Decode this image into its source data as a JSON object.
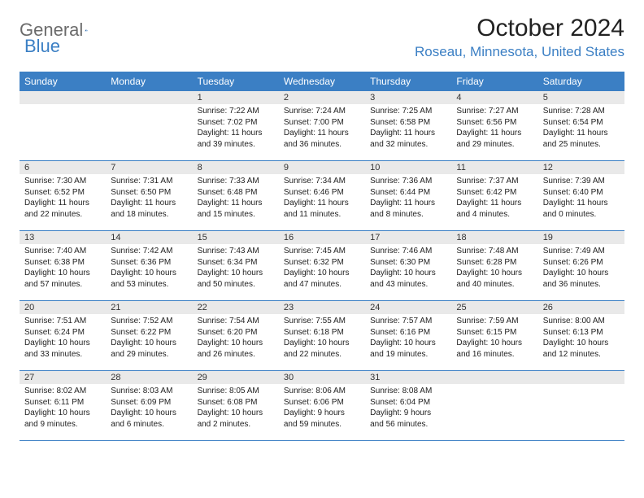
{
  "logo": {
    "word1": "General",
    "word2": "Blue"
  },
  "header": {
    "month_title": "October 2024",
    "location": "Roseau, Minnesota, United States"
  },
  "colors": {
    "header_bg": "#3b7fc4",
    "header_text": "#ffffff",
    "daynum_bg": "#e9e9e9",
    "body_bg": "#ffffff",
    "rule": "#3b7fc4",
    "logo_gray": "#6b6b6b",
    "logo_blue": "#3b7fc4"
  },
  "weekdays": [
    "Sunday",
    "Monday",
    "Tuesday",
    "Wednesday",
    "Thursday",
    "Friday",
    "Saturday"
  ],
  "weeks": [
    [
      {
        "day": "",
        "sunrise": "",
        "sunset": "",
        "daylight": ""
      },
      {
        "day": "",
        "sunrise": "",
        "sunset": "",
        "daylight": ""
      },
      {
        "day": "1",
        "sunrise": "Sunrise: 7:22 AM",
        "sunset": "Sunset: 7:02 PM",
        "daylight": "Daylight: 11 hours and 39 minutes."
      },
      {
        "day": "2",
        "sunrise": "Sunrise: 7:24 AM",
        "sunset": "Sunset: 7:00 PM",
        "daylight": "Daylight: 11 hours and 36 minutes."
      },
      {
        "day": "3",
        "sunrise": "Sunrise: 7:25 AM",
        "sunset": "Sunset: 6:58 PM",
        "daylight": "Daylight: 11 hours and 32 minutes."
      },
      {
        "day": "4",
        "sunrise": "Sunrise: 7:27 AM",
        "sunset": "Sunset: 6:56 PM",
        "daylight": "Daylight: 11 hours and 29 minutes."
      },
      {
        "day": "5",
        "sunrise": "Sunrise: 7:28 AM",
        "sunset": "Sunset: 6:54 PM",
        "daylight": "Daylight: 11 hours and 25 minutes."
      }
    ],
    [
      {
        "day": "6",
        "sunrise": "Sunrise: 7:30 AM",
        "sunset": "Sunset: 6:52 PM",
        "daylight": "Daylight: 11 hours and 22 minutes."
      },
      {
        "day": "7",
        "sunrise": "Sunrise: 7:31 AM",
        "sunset": "Sunset: 6:50 PM",
        "daylight": "Daylight: 11 hours and 18 minutes."
      },
      {
        "day": "8",
        "sunrise": "Sunrise: 7:33 AM",
        "sunset": "Sunset: 6:48 PM",
        "daylight": "Daylight: 11 hours and 15 minutes."
      },
      {
        "day": "9",
        "sunrise": "Sunrise: 7:34 AM",
        "sunset": "Sunset: 6:46 PM",
        "daylight": "Daylight: 11 hours and 11 minutes."
      },
      {
        "day": "10",
        "sunrise": "Sunrise: 7:36 AM",
        "sunset": "Sunset: 6:44 PM",
        "daylight": "Daylight: 11 hours and 8 minutes."
      },
      {
        "day": "11",
        "sunrise": "Sunrise: 7:37 AM",
        "sunset": "Sunset: 6:42 PM",
        "daylight": "Daylight: 11 hours and 4 minutes."
      },
      {
        "day": "12",
        "sunrise": "Sunrise: 7:39 AM",
        "sunset": "Sunset: 6:40 PM",
        "daylight": "Daylight: 11 hours and 0 minutes."
      }
    ],
    [
      {
        "day": "13",
        "sunrise": "Sunrise: 7:40 AM",
        "sunset": "Sunset: 6:38 PM",
        "daylight": "Daylight: 10 hours and 57 minutes."
      },
      {
        "day": "14",
        "sunrise": "Sunrise: 7:42 AM",
        "sunset": "Sunset: 6:36 PM",
        "daylight": "Daylight: 10 hours and 53 minutes."
      },
      {
        "day": "15",
        "sunrise": "Sunrise: 7:43 AM",
        "sunset": "Sunset: 6:34 PM",
        "daylight": "Daylight: 10 hours and 50 minutes."
      },
      {
        "day": "16",
        "sunrise": "Sunrise: 7:45 AM",
        "sunset": "Sunset: 6:32 PM",
        "daylight": "Daylight: 10 hours and 47 minutes."
      },
      {
        "day": "17",
        "sunrise": "Sunrise: 7:46 AM",
        "sunset": "Sunset: 6:30 PM",
        "daylight": "Daylight: 10 hours and 43 minutes."
      },
      {
        "day": "18",
        "sunrise": "Sunrise: 7:48 AM",
        "sunset": "Sunset: 6:28 PM",
        "daylight": "Daylight: 10 hours and 40 minutes."
      },
      {
        "day": "19",
        "sunrise": "Sunrise: 7:49 AM",
        "sunset": "Sunset: 6:26 PM",
        "daylight": "Daylight: 10 hours and 36 minutes."
      }
    ],
    [
      {
        "day": "20",
        "sunrise": "Sunrise: 7:51 AM",
        "sunset": "Sunset: 6:24 PM",
        "daylight": "Daylight: 10 hours and 33 minutes."
      },
      {
        "day": "21",
        "sunrise": "Sunrise: 7:52 AM",
        "sunset": "Sunset: 6:22 PM",
        "daylight": "Daylight: 10 hours and 29 minutes."
      },
      {
        "day": "22",
        "sunrise": "Sunrise: 7:54 AM",
        "sunset": "Sunset: 6:20 PM",
        "daylight": "Daylight: 10 hours and 26 minutes."
      },
      {
        "day": "23",
        "sunrise": "Sunrise: 7:55 AM",
        "sunset": "Sunset: 6:18 PM",
        "daylight": "Daylight: 10 hours and 22 minutes."
      },
      {
        "day": "24",
        "sunrise": "Sunrise: 7:57 AM",
        "sunset": "Sunset: 6:16 PM",
        "daylight": "Daylight: 10 hours and 19 minutes."
      },
      {
        "day": "25",
        "sunrise": "Sunrise: 7:59 AM",
        "sunset": "Sunset: 6:15 PM",
        "daylight": "Daylight: 10 hours and 16 minutes."
      },
      {
        "day": "26",
        "sunrise": "Sunrise: 8:00 AM",
        "sunset": "Sunset: 6:13 PM",
        "daylight": "Daylight: 10 hours and 12 minutes."
      }
    ],
    [
      {
        "day": "27",
        "sunrise": "Sunrise: 8:02 AM",
        "sunset": "Sunset: 6:11 PM",
        "daylight": "Daylight: 10 hours and 9 minutes."
      },
      {
        "day": "28",
        "sunrise": "Sunrise: 8:03 AM",
        "sunset": "Sunset: 6:09 PM",
        "daylight": "Daylight: 10 hours and 6 minutes."
      },
      {
        "day": "29",
        "sunrise": "Sunrise: 8:05 AM",
        "sunset": "Sunset: 6:08 PM",
        "daylight": "Daylight: 10 hours and 2 minutes."
      },
      {
        "day": "30",
        "sunrise": "Sunrise: 8:06 AM",
        "sunset": "Sunset: 6:06 PM",
        "daylight": "Daylight: 9 hours and 59 minutes."
      },
      {
        "day": "31",
        "sunrise": "Sunrise: 8:08 AM",
        "sunset": "Sunset: 6:04 PM",
        "daylight": "Daylight: 9 hours and 56 minutes."
      },
      {
        "day": "",
        "sunrise": "",
        "sunset": "",
        "daylight": ""
      },
      {
        "day": "",
        "sunrise": "",
        "sunset": "",
        "daylight": ""
      }
    ]
  ]
}
